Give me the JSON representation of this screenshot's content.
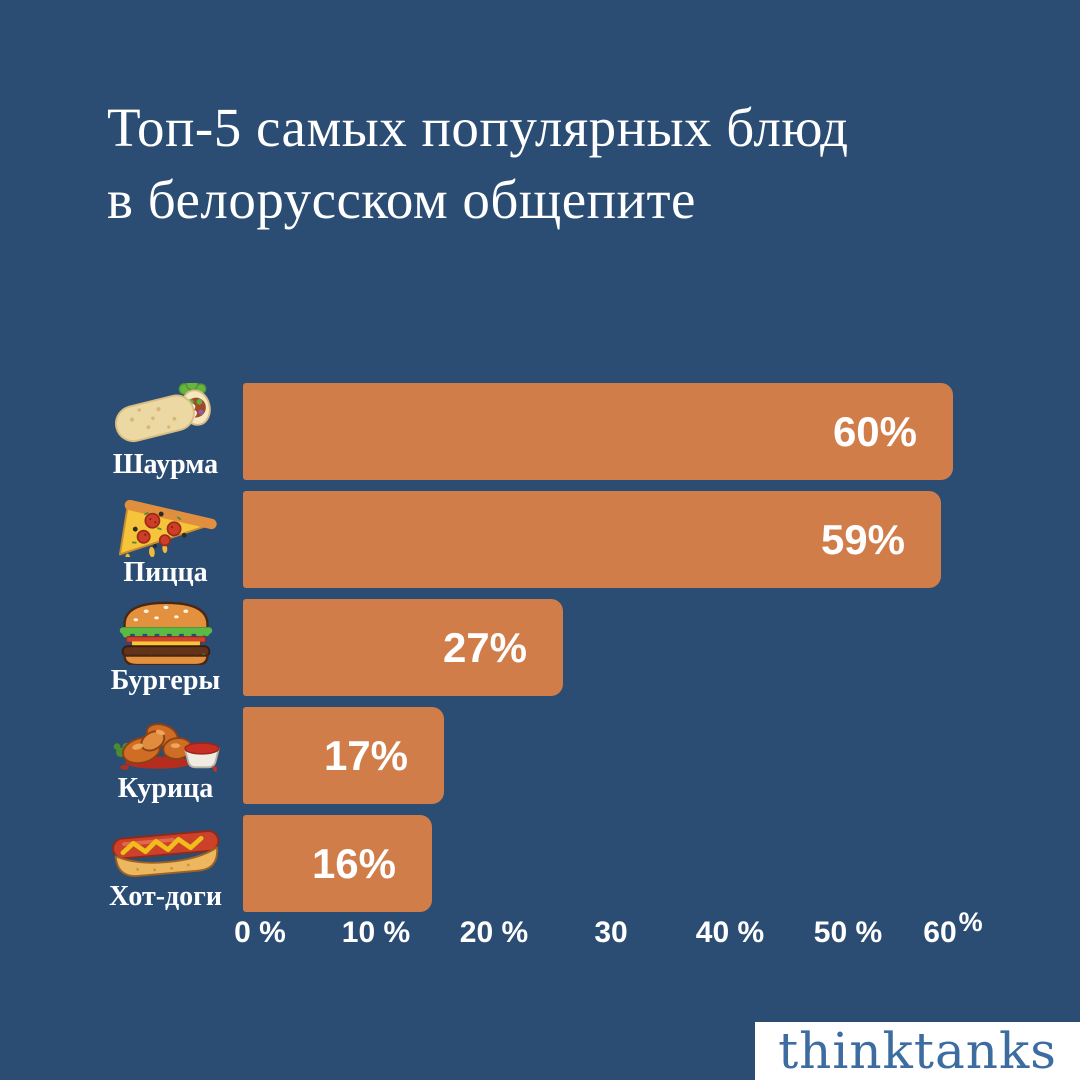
{
  "title": {
    "lines": [
      "Топ-5 самых популярных блюд",
      "в белорусском общепите"
    ]
  },
  "chart_data": {
    "type": "bar",
    "orientation": "horizontal",
    "title": "Топ-5 самых популярных блюд в белорусском общепите",
    "categories": [
      "Шаурма",
      "Пицца",
      "Бургеры",
      "Курица",
      "Хот-доги"
    ],
    "values": [
      60,
      59,
      27,
      17,
      16
    ],
    "value_labels": [
      "60%",
      "59%",
      "27%",
      "17%",
      "16%"
    ],
    "icons": [
      "shawarma-icon",
      "pizza-icon",
      "burger-icon",
      "chicken-icon",
      "hotdog-icon"
    ],
    "x_ticks": [
      "0 %",
      "10 %",
      "20 %",
      "30",
      "40 %",
      "50 %",
      "60"
    ],
    "x_tick_sup": "%",
    "xlim": [
      0,
      60
    ],
    "grid": false,
    "legend": false,
    "bar_color": "#d17d4a",
    "background_color": "#2b4d73",
    "text_color": "#ffffff"
  },
  "footer": {
    "logo_text": "thinktanks",
    "logo_color": "#3d6da0",
    "logo_bg": "#ffffff"
  }
}
